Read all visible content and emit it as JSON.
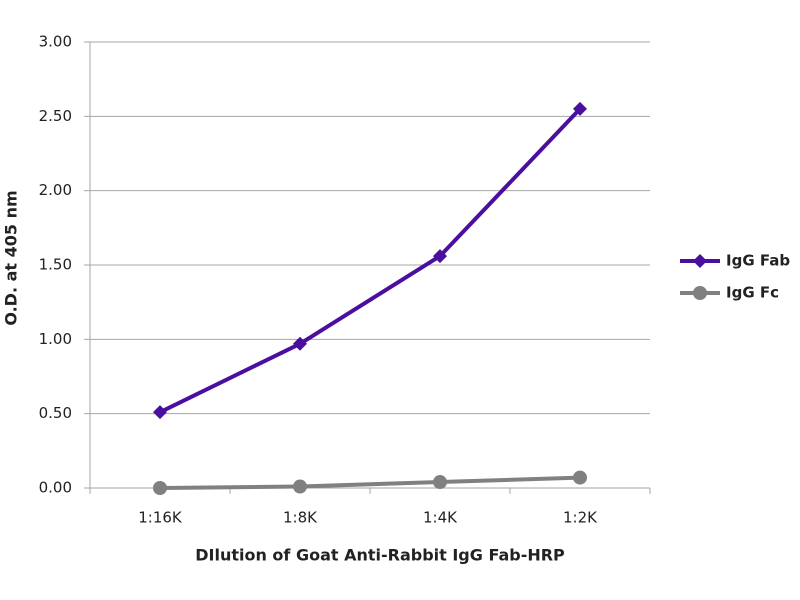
{
  "chart_data": {
    "type": "line",
    "x_label": "DIlution of Goat Anti-Rabbit IgG Fab-HRP",
    "y_label": "O.D. at 405 nm",
    "categories": [
      "1:16K",
      "1:8K",
      "1:4K",
      "1:2K"
    ],
    "series": [
      {
        "name": "IgG Fab",
        "color": "#4b0fa0",
        "marker": "diamond",
        "values": [
          0.51,
          0.97,
          1.56,
          2.55
        ]
      },
      {
        "name": "IgG Fc",
        "color": "#808080",
        "marker": "circle",
        "values": [
          0.0,
          0.01,
          0.04,
          0.07
        ]
      }
    ],
    "ylim": [
      0,
      3
    ],
    "yticks": [
      {
        "value": 0,
        "label": "0.00"
      },
      {
        "value": 0.5,
        "label": "0.50"
      },
      {
        "value": 1,
        "label": "1.00"
      },
      {
        "value": 1.5,
        "label": "1.50"
      },
      {
        "value": 2,
        "label": "2.00"
      },
      {
        "value": 2.5,
        "label": "2.50"
      },
      {
        "value": 3,
        "label": "3.00"
      }
    ],
    "grid": true,
    "legend": "right"
  }
}
